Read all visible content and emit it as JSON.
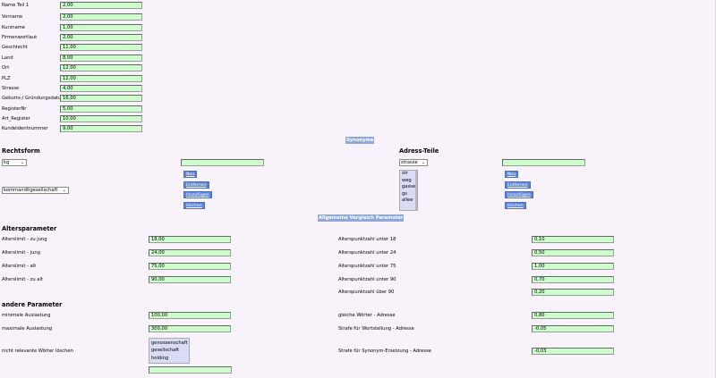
{
  "name_fields": [
    {
      "label": "Name Teil 1",
      "value": "2,00"
    },
    {
      "label": "Vorname",
      "value": "2,00"
    },
    {
      "label": "Kurzname",
      "value": "1,00"
    },
    {
      "label": "Firmenwortlaut",
      "value": "2,00"
    },
    {
      "label": "Geschlecht",
      "value": "11,00"
    },
    {
      "label": "Land",
      "value": "8,00"
    },
    {
      "label": "Ort",
      "value": "12,00"
    },
    {
      "label": "PLZ",
      "value": "12,00"
    },
    {
      "label": "Strasse",
      "value": "4,00"
    },
    {
      "label": "Geburts-/ Gründungsdatum",
      "value": "16,00"
    },
    {
      "label": "RegisterNr",
      "value": "5,00"
    },
    {
      "label": "Art_Register",
      "value": "10,00"
    },
    {
      "label": "KundeIdentnummer",
      "value": "9,00"
    }
  ],
  "synonyme": {
    "bar_label": "Synonyme",
    "rechtsform": {
      "title": "Rechtsform",
      "select_value": "kg",
      "list_select_value": "kommanditgesellschaft",
      "buttons": [
        "Neu",
        "Entfernen",
        "hinzufügen",
        "löschen"
      ]
    },
    "adress_teile": {
      "title": "Adress-Teile",
      "select_value": "strasse",
      "list_items": [
        "str",
        "weg",
        "gasse",
        "gs",
        "allee"
      ],
      "buttons": [
        "Neu",
        "Entfernen",
        "hinzufügen",
        "löschen"
      ]
    }
  },
  "allgemeine": {
    "bar_label": "Allgemeine Vergleich Parameter",
    "alters_title": "Altersparameter",
    "alters_left": [
      {
        "label": "Alterslimit - zu jung",
        "value": "18,00"
      },
      {
        "label": "Alterslimit - jung",
        "value": "24,00"
      },
      {
        "label": "Alterslimit - alt",
        "value": "75,00"
      },
      {
        "label": "Alterslimit - zu alt",
        "value": "90,00"
      }
    ],
    "alters_right": [
      {
        "label": "Alterspunktzahl unter 18",
        "value": "0,10"
      },
      {
        "label": "Alterspunktzahl unter 24",
        "value": "0,50"
      },
      {
        "label": "Alterspunktzahl unter 75",
        "value": "1,00"
      },
      {
        "label": "Alterspunktzahl unter 90",
        "value": "0,70"
      },
      {
        "label": "Alterspunktzahl über 90",
        "value": "0,20"
      }
    ],
    "andere_title": "andere Parameter",
    "andere_left": [
      {
        "label": "minimale Auslastung",
        "value": "100,00"
      },
      {
        "label": "maximale Auslastung",
        "value": "300,00"
      }
    ],
    "andere_right": [
      {
        "label": "gleiche Wörter - Adresse",
        "value": "0,80"
      },
      {
        "label": "Strafe für Wortstellung - Adresse",
        "value": "-0,05"
      },
      {
        "label": "Strafe für Synonym-Ersetzung - Adresse",
        "value": "-0,03"
      }
    ],
    "irrelevant_label": "nicht relevante Wörter löschen",
    "irrelevant_items": [
      "genossenschaft",
      "gesellschaft",
      "holding"
    ]
  }
}
